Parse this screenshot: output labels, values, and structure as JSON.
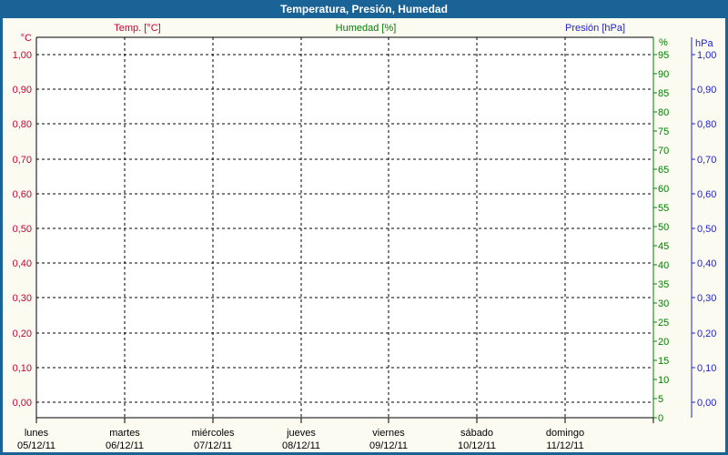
{
  "window": {
    "title": "Temperatura, Presión, Humedad"
  },
  "colors": {
    "titlebar_bg": "#1A6397",
    "titlebar_text": "#FFFFFF",
    "frame": "#1A6397",
    "background": "#FBFBF2",
    "plot_background": "#FFFFFF",
    "grid": "#000000",
    "temp": "#CC0033",
    "humidity": "#008000",
    "pressure": "#2222CC",
    "day_label_text": "#000000"
  },
  "legend": {
    "temp_label": "Temp. [°C]",
    "humidity_label": "Humedad [%]",
    "pressure_label": "Presión [hPa]"
  },
  "chart_data": {
    "type": "line",
    "title": "Temperatura, Presión, Humedad",
    "grid": "dashed",
    "legend_position": "top",
    "series": [
      {
        "name": "Temp. [°C]",
        "axis": "temp",
        "color": "#CC0033",
        "points": []
      },
      {
        "name": "Humedad [%]",
        "axis": "humidity",
        "color": "#008000",
        "points": []
      },
      {
        "name": "Presión [hPa]",
        "axis": "pressure",
        "color": "#2222CC",
        "points": []
      }
    ],
    "axes": {
      "temp": {
        "unit": "°C",
        "side": "left",
        "color": "#CC0033",
        "ticks": [
          "1,00",
          "0,90",
          "0,80",
          "0,70",
          "0,60",
          "0,50",
          "0,40",
          "0,30",
          "0,20",
          "0,10",
          "0,00"
        ]
      },
      "humidity": {
        "unit": "%",
        "side": "right-inner",
        "color": "#008000",
        "ticks": [
          "95",
          "90",
          "85",
          "80",
          "75",
          "70",
          "65",
          "60",
          "55",
          "50",
          "45",
          "40",
          "35",
          "30",
          "25",
          "20",
          "15",
          "10",
          "5",
          "0"
        ]
      },
      "pressure": {
        "unit": "hPa",
        "side": "right-outer",
        "color": "#2222CC",
        "ticks": [
          "1,00",
          "0,90",
          "0,80",
          "0,70",
          "0,60",
          "0,50",
          "0,40",
          "0,30",
          "0,20",
          "0,10",
          "0,00"
        ]
      }
    },
    "x_axis": {
      "days": [
        {
          "name": "lunes",
          "date": "05/12/11"
        },
        {
          "name": "martes",
          "date": "06/12/11"
        },
        {
          "name": "miércoles",
          "date": "07/12/11"
        },
        {
          "name": "jueves",
          "date": "08/12/11"
        },
        {
          "name": "viernes",
          "date": "09/12/11"
        },
        {
          "name": "sábado",
          "date": "10/12/11"
        },
        {
          "name": "domingo",
          "date": "11/12/11"
        }
      ]
    }
  }
}
